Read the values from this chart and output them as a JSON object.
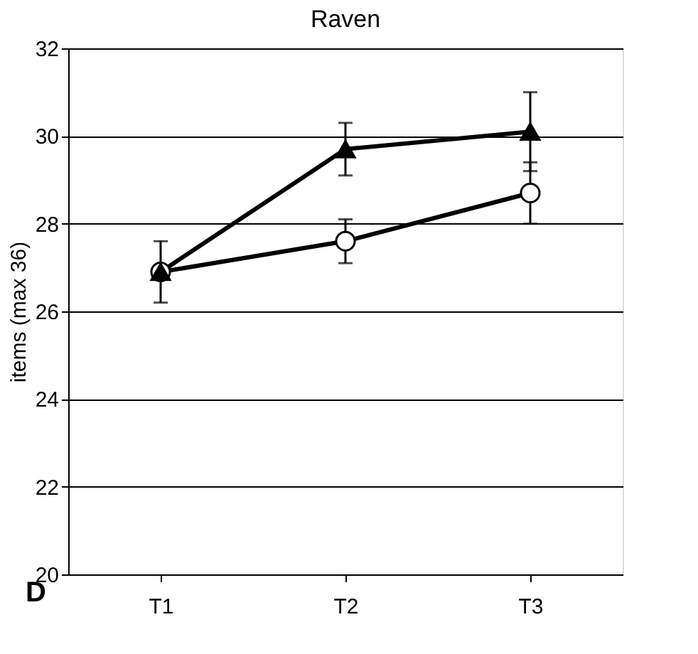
{
  "chart_data": {
    "type": "line",
    "title": "Raven",
    "ylabel": "items (max 36)",
    "categories": [
      "T1",
      "T2",
      "T3"
    ],
    "series": [
      {
        "color": "#000000",
        "marker": "circle",
        "values": [
          26.9,
          27.6,
          28.7
        ],
        "errors": [
          null,
          0.5,
          0.7
        ]
      },
      {
        "color": "#000000",
        "marker": "triangle",
        "values": [
          26.9,
          29.7,
          30.1
        ],
        "errors": [
          0.7,
          0.6,
          0.9
        ]
      }
    ],
    "ylim": [
      20,
      32
    ],
    "yticks": [
      20,
      22,
      24,
      26,
      28,
      30,
      32
    ],
    "grid": "y",
    "annotations": [
      "D"
    ]
  }
}
